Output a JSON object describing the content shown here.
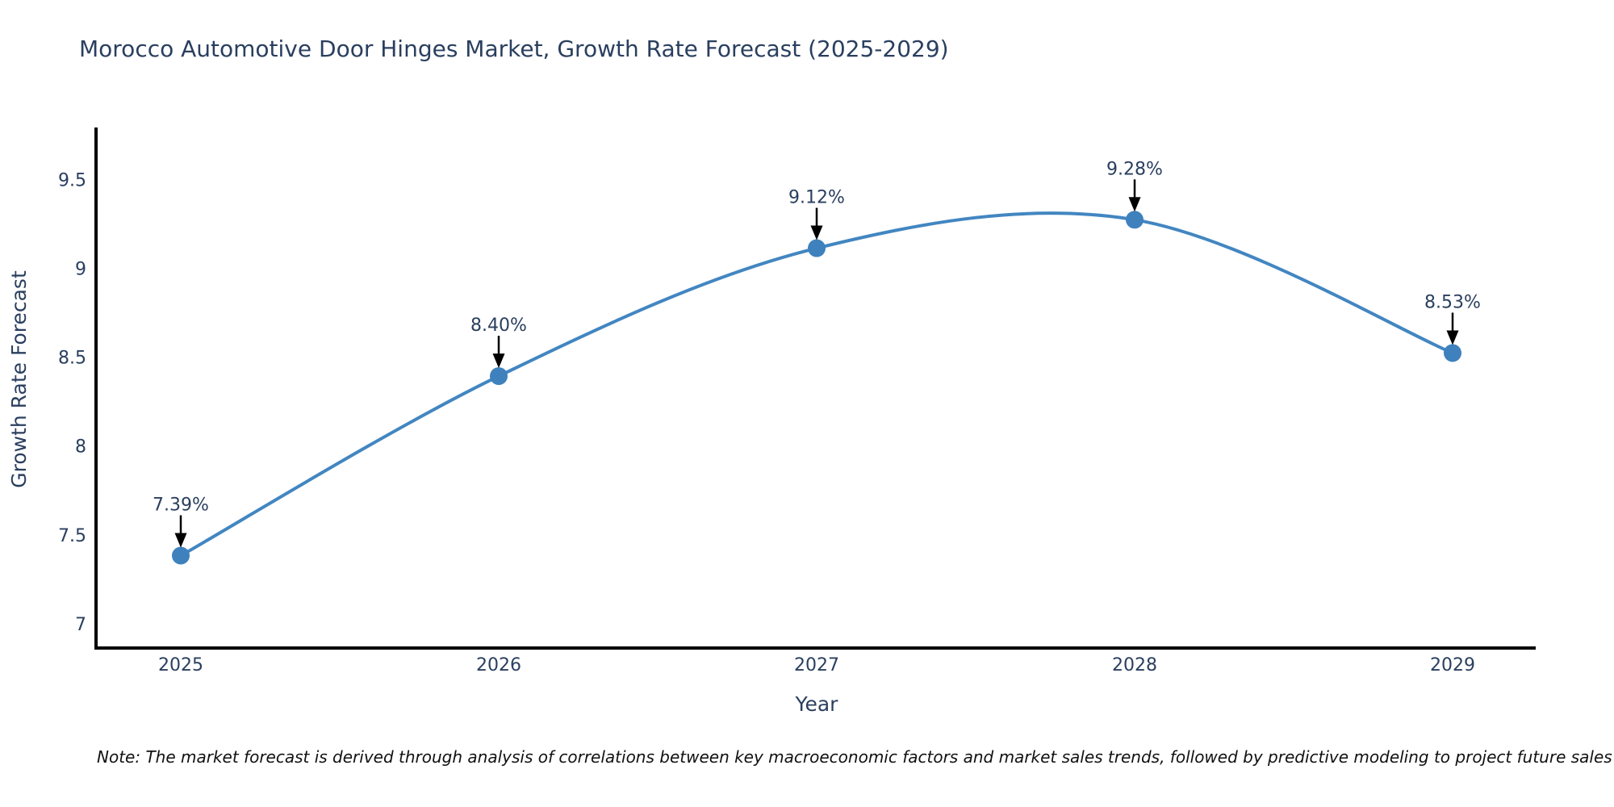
{
  "note": "Note: The market forecast is derived through analysis of correlations between key macroeconomic factors and market sales trends, followed by predictive modeling to project future sales",
  "colors": {
    "line": "#4286c1",
    "marker": "#3e81bd",
    "text": "#2a3f5f",
    "axis": "#000000",
    "arrow": "#000000",
    "background": "#ffffff"
  },
  "chart_data": {
    "type": "line",
    "line_shape": "spline",
    "title": "Morocco Automotive Door Hinges Market, Growth Rate Forecast (2025-2029)",
    "xlabel": "Year",
    "ylabel": "Growth Rate Forecast",
    "x": [
      "2025",
      "2026",
      "2027",
      "2028",
      "2029"
    ],
    "values": [
      7.39,
      8.4,
      9.12,
      9.28,
      8.53
    ],
    "labels": [
      "7.39%",
      "8.40%",
      "9.12%",
      "9.28%",
      "8.53%"
    ],
    "yticks": [
      7,
      7.5,
      8,
      8.5,
      9,
      9.5
    ],
    "ytick_labels": [
      "7",
      "7.5",
      "8",
      "8.5",
      "9",
      "9.5"
    ],
    "ylim": [
      6.87,
      9.79
    ],
    "grid": false,
    "legend": false,
    "annotations": "black down-arrows from each percentage label to its data point"
  }
}
